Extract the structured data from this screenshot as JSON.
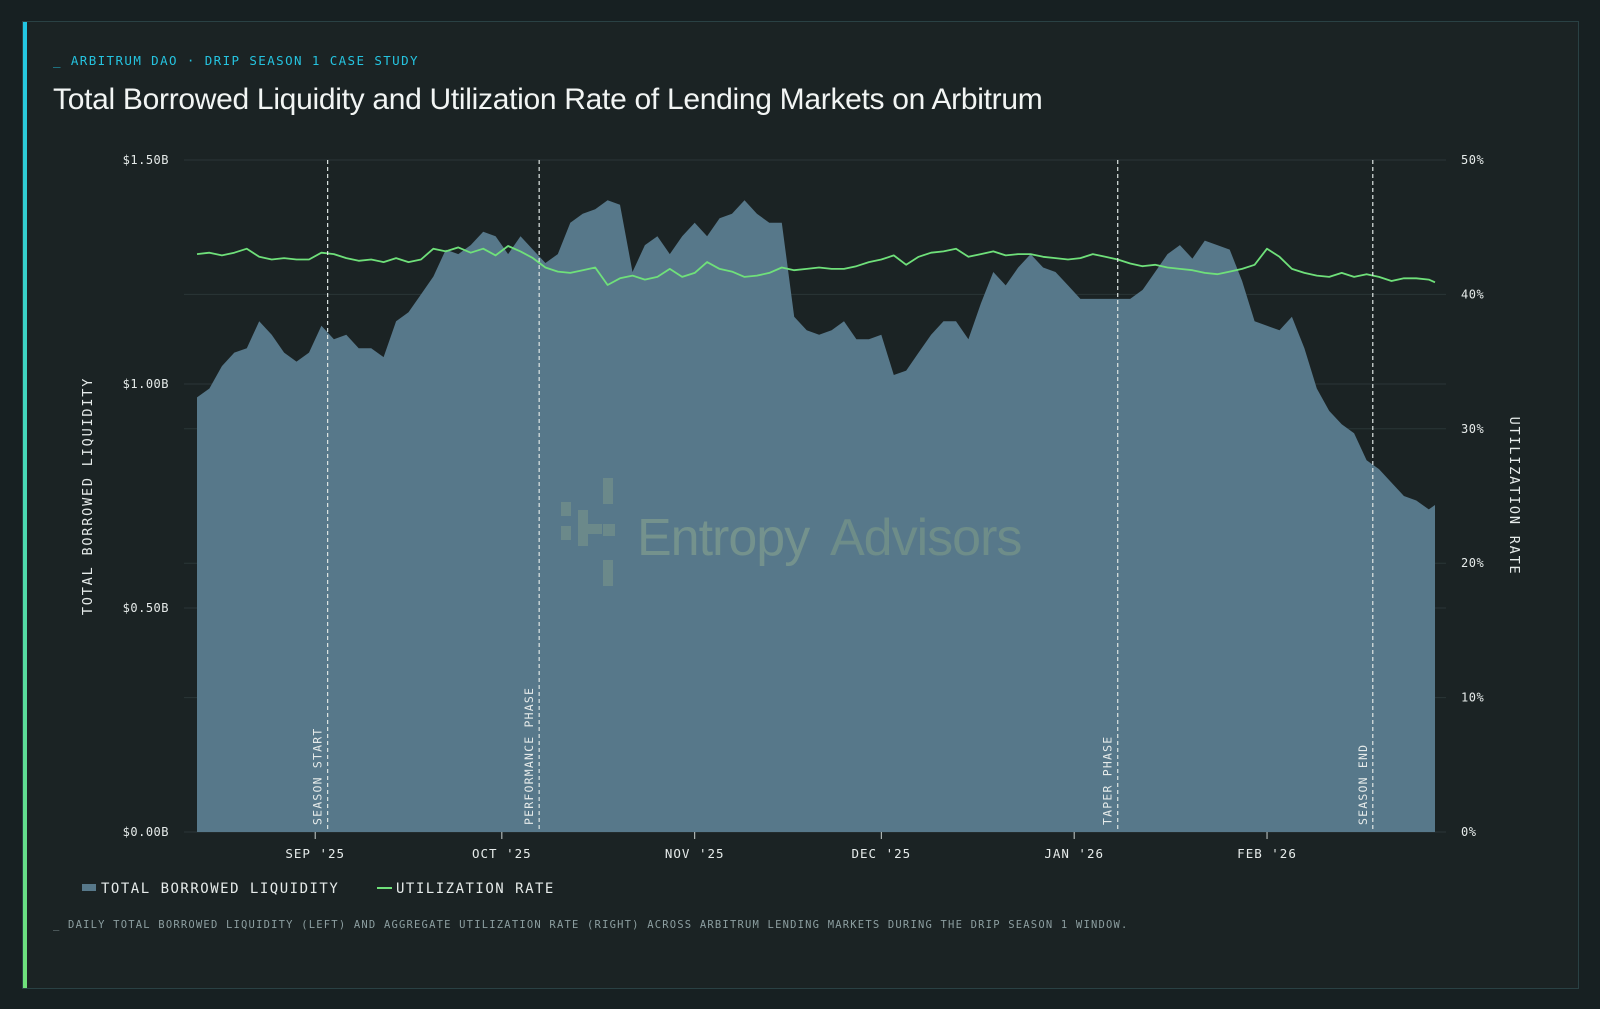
{
  "header": {
    "kicker": "_ ARBITRUM DAO · DRIP SEASON 1 CASE STUDY",
    "title": "Total Borrowed Liquidity and Utilization Rate of Lending Markets on Arbitrum"
  },
  "caption": "_ DAILY TOTAL BORROWED LIQUIDITY (LEFT) AND AGGREGATE UTILIZATION RATE (RIGHT) ACROSS ARBITRUM LENDING MARKETS DURING THE DRIP SEASON 1 WINDOW.",
  "watermark": {
    "part1": "Entropy",
    "part2": "Advisors"
  },
  "colors": {
    "background": "#1b2324",
    "area": "#57788a",
    "line": "#6fe07a",
    "kicker": "#25c3df",
    "axis_text": "#e6ebea",
    "grid": "#2b3637"
  },
  "chart_data": {
    "type": "area",
    "secondary_type": "line",
    "x_range": [
      "2025-08-13",
      "2026-02-28"
    ],
    "x_ticks": [
      {
        "date": "2025-09-01",
        "label": "SEP '25"
      },
      {
        "date": "2025-10-01",
        "label": "OCT '25"
      },
      {
        "date": "2025-11-01",
        "label": "NOV '25"
      },
      {
        "date": "2025-12-01",
        "label": "DEC '25"
      },
      {
        "date": "2026-01-01",
        "label": "JAN '26"
      },
      {
        "date": "2026-02-01",
        "label": "FEB '26"
      }
    ],
    "y_left": {
      "label": "TOTAL BORROWED LIQUIDITY",
      "range": [
        0,
        1.5
      ],
      "unit": "$B",
      "ticks": [
        {
          "value": 0,
          "label": "$0.00B"
        },
        {
          "value": 0.5,
          "label": "$0.50B"
        },
        {
          "value": 1.0,
          "label": "$1.00B"
        },
        {
          "value": 1.5,
          "label": "$1.50B"
        }
      ]
    },
    "y_right": {
      "label": "UTILIZATION RATE",
      "range": [
        0,
        50
      ],
      "unit": "%",
      "ticks": [
        {
          "value": 0,
          "label": "0%"
        },
        {
          "value": 10,
          "label": "10%"
        },
        {
          "value": 20,
          "label": "20%"
        },
        {
          "value": 30,
          "label": "30%"
        },
        {
          "value": 40,
          "label": "40%"
        },
        {
          "value": 50,
          "label": "50%"
        }
      ]
    },
    "grid": "horizontal",
    "legend_position": "bottom-left",
    "legend": [
      {
        "label": "TOTAL BORROWED LIQUIDITY",
        "kind": "area"
      },
      {
        "label": "UTILIZATION RATE",
        "kind": "line"
      }
    ],
    "annotations": [
      {
        "date": "2025-09-03",
        "label": "SEASON START"
      },
      {
        "date": "2025-10-07",
        "label": "PERFORMANCE PHASE"
      },
      {
        "date": "2026-01-08",
        "label": "TAPER PHASE"
      },
      {
        "date": "2026-02-18",
        "label": "SEASON END"
      }
    ],
    "series": [
      {
        "name": "TOTAL BORROWED LIQUIDITY",
        "axis": "left",
        "points": [
          [
            "2025-08-13",
            0.97
          ],
          [
            "2025-08-15",
            0.99
          ],
          [
            "2025-08-17",
            1.04
          ],
          [
            "2025-08-19",
            1.07
          ],
          [
            "2025-08-21",
            1.08
          ],
          [
            "2025-08-23",
            1.14
          ],
          [
            "2025-08-25",
            1.11
          ],
          [
            "2025-08-27",
            1.07
          ],
          [
            "2025-08-29",
            1.05
          ],
          [
            "2025-08-31",
            1.07
          ],
          [
            "2025-09-02",
            1.13
          ],
          [
            "2025-09-04",
            1.1
          ],
          [
            "2025-09-06",
            1.11
          ],
          [
            "2025-09-08",
            1.08
          ],
          [
            "2025-09-10",
            1.08
          ],
          [
            "2025-09-12",
            1.06
          ],
          [
            "2025-09-14",
            1.14
          ],
          [
            "2025-09-16",
            1.16
          ],
          [
            "2025-09-18",
            1.2
          ],
          [
            "2025-09-20",
            1.24
          ],
          [
            "2025-09-22",
            1.3
          ],
          [
            "2025-09-24",
            1.29
          ],
          [
            "2025-09-26",
            1.31
          ],
          [
            "2025-09-28",
            1.34
          ],
          [
            "2025-09-30",
            1.33
          ],
          [
            "2025-10-02",
            1.29
          ],
          [
            "2025-10-04",
            1.33
          ],
          [
            "2025-10-06",
            1.3
          ],
          [
            "2025-10-08",
            1.27
          ],
          [
            "2025-10-10",
            1.29
          ],
          [
            "2025-10-12",
            1.36
          ],
          [
            "2025-10-14",
            1.38
          ],
          [
            "2025-10-16",
            1.39
          ],
          [
            "2025-10-18",
            1.41
          ],
          [
            "2025-10-20",
            1.4
          ],
          [
            "2025-10-22",
            1.25
          ],
          [
            "2025-10-24",
            1.31
          ],
          [
            "2025-10-26",
            1.33
          ],
          [
            "2025-10-28",
            1.29
          ],
          [
            "2025-10-30",
            1.33
          ],
          [
            "2025-11-01",
            1.36
          ],
          [
            "2025-11-03",
            1.33
          ],
          [
            "2025-11-05",
            1.37
          ],
          [
            "2025-11-07",
            1.38
          ],
          [
            "2025-11-09",
            1.41
          ],
          [
            "2025-11-11",
            1.38
          ],
          [
            "2025-11-13",
            1.36
          ],
          [
            "2025-11-15",
            1.36
          ],
          [
            "2025-11-17",
            1.15
          ],
          [
            "2025-11-19",
            1.12
          ],
          [
            "2025-11-21",
            1.11
          ],
          [
            "2025-11-23",
            1.12
          ],
          [
            "2025-11-25",
            1.14
          ],
          [
            "2025-11-27",
            1.1
          ],
          [
            "2025-11-29",
            1.1
          ],
          [
            "2025-12-01",
            1.11
          ],
          [
            "2025-12-03",
            1.02
          ],
          [
            "2025-12-05",
            1.03
          ],
          [
            "2025-12-07",
            1.07
          ],
          [
            "2025-12-09",
            1.11
          ],
          [
            "2025-12-11",
            1.14
          ],
          [
            "2025-12-13",
            1.14
          ],
          [
            "2025-12-15",
            1.1
          ],
          [
            "2025-12-17",
            1.18
          ],
          [
            "2025-12-19",
            1.25
          ],
          [
            "2025-12-21",
            1.22
          ],
          [
            "2025-12-23",
            1.26
          ],
          [
            "2025-12-25",
            1.29
          ],
          [
            "2025-12-27",
            1.26
          ],
          [
            "2025-12-29",
            1.25
          ],
          [
            "2025-12-31",
            1.22
          ],
          [
            "2026-01-02",
            1.19
          ],
          [
            "2026-01-04",
            1.19
          ],
          [
            "2026-01-06",
            1.19
          ],
          [
            "2026-01-08",
            1.19
          ],
          [
            "2026-01-10",
            1.19
          ],
          [
            "2026-01-12",
            1.21
          ],
          [
            "2026-01-14",
            1.25
          ],
          [
            "2026-01-16",
            1.29
          ],
          [
            "2026-01-18",
            1.31
          ],
          [
            "2026-01-20",
            1.28
          ],
          [
            "2026-01-22",
            1.32
          ],
          [
            "2026-01-24",
            1.31
          ],
          [
            "2026-01-26",
            1.3
          ],
          [
            "2026-01-28",
            1.23
          ],
          [
            "2026-01-30",
            1.14
          ],
          [
            "2026-02-01",
            1.13
          ],
          [
            "2026-02-03",
            1.12
          ],
          [
            "2026-02-05",
            1.15
          ],
          [
            "2026-02-07",
            1.08
          ],
          [
            "2026-02-09",
            0.99
          ],
          [
            "2026-02-11",
            0.94
          ],
          [
            "2026-02-13",
            0.91
          ],
          [
            "2026-02-15",
            0.89
          ],
          [
            "2026-02-17",
            0.83
          ],
          [
            "2026-02-19",
            0.81
          ],
          [
            "2026-02-21",
            0.78
          ],
          [
            "2026-02-23",
            0.75
          ],
          [
            "2026-02-25",
            0.74
          ],
          [
            "2026-02-27",
            0.72
          ],
          [
            "2026-02-28",
            0.73
          ]
        ]
      },
      {
        "name": "UTILIZATION RATE",
        "axis": "right",
        "points": [
          [
            "2025-08-13",
            43.0
          ],
          [
            "2025-08-15",
            43.1
          ],
          [
            "2025-08-17",
            42.9
          ],
          [
            "2025-08-19",
            43.1
          ],
          [
            "2025-08-21",
            43.4
          ],
          [
            "2025-08-23",
            42.8
          ],
          [
            "2025-08-25",
            42.6
          ],
          [
            "2025-08-27",
            42.7
          ],
          [
            "2025-08-29",
            42.6
          ],
          [
            "2025-08-31",
            42.6
          ],
          [
            "2025-09-02",
            43.1
          ],
          [
            "2025-09-04",
            43.0
          ],
          [
            "2025-09-06",
            42.7
          ],
          [
            "2025-09-08",
            42.5
          ],
          [
            "2025-09-10",
            42.6
          ],
          [
            "2025-09-12",
            42.4
          ],
          [
            "2025-09-14",
            42.7
          ],
          [
            "2025-09-16",
            42.4
          ],
          [
            "2025-09-18",
            42.6
          ],
          [
            "2025-09-20",
            43.4
          ],
          [
            "2025-09-22",
            43.2
          ],
          [
            "2025-09-24",
            43.5
          ],
          [
            "2025-09-26",
            43.1
          ],
          [
            "2025-09-28",
            43.4
          ],
          [
            "2025-09-30",
            42.9
          ],
          [
            "2025-10-02",
            43.6
          ],
          [
            "2025-10-04",
            43.2
          ],
          [
            "2025-10-06",
            42.7
          ],
          [
            "2025-10-08",
            42.0
          ],
          [
            "2025-10-10",
            41.7
          ],
          [
            "2025-10-12",
            41.6
          ],
          [
            "2025-10-14",
            41.8
          ],
          [
            "2025-10-16",
            42.0
          ],
          [
            "2025-10-18",
            40.7
          ],
          [
            "2025-10-20",
            41.2
          ],
          [
            "2025-10-22",
            41.4
          ],
          [
            "2025-10-24",
            41.1
          ],
          [
            "2025-10-26",
            41.3
          ],
          [
            "2025-10-28",
            41.9
          ],
          [
            "2025-10-30",
            41.3
          ],
          [
            "2025-11-01",
            41.6
          ],
          [
            "2025-11-03",
            42.4
          ],
          [
            "2025-11-05",
            41.9
          ],
          [
            "2025-11-07",
            41.7
          ],
          [
            "2025-11-09",
            41.3
          ],
          [
            "2025-11-11",
            41.4
          ],
          [
            "2025-11-13",
            41.6
          ],
          [
            "2025-11-15",
            42.0
          ],
          [
            "2025-11-17",
            41.8
          ],
          [
            "2025-11-19",
            41.9
          ],
          [
            "2025-11-21",
            42.0
          ],
          [
            "2025-11-23",
            41.9
          ],
          [
            "2025-11-25",
            41.9
          ],
          [
            "2025-11-27",
            42.1
          ],
          [
            "2025-11-29",
            42.4
          ],
          [
            "2025-12-01",
            42.6
          ],
          [
            "2025-12-03",
            42.9
          ],
          [
            "2025-12-05",
            42.2
          ],
          [
            "2025-12-07",
            42.8
          ],
          [
            "2025-12-09",
            43.1
          ],
          [
            "2025-12-11",
            43.2
          ],
          [
            "2025-12-13",
            43.4
          ],
          [
            "2025-12-15",
            42.8
          ],
          [
            "2025-12-17",
            43.0
          ],
          [
            "2025-12-19",
            43.2
          ],
          [
            "2025-12-21",
            42.9
          ],
          [
            "2025-12-23",
            43.0
          ],
          [
            "2025-12-25",
            43.0
          ],
          [
            "2025-12-27",
            42.8
          ],
          [
            "2025-12-29",
            42.7
          ],
          [
            "2025-12-31",
            42.6
          ],
          [
            "2026-01-02",
            42.7
          ],
          [
            "2026-01-04",
            43.0
          ],
          [
            "2026-01-06",
            42.8
          ],
          [
            "2026-01-08",
            42.6
          ],
          [
            "2026-01-10",
            42.3
          ],
          [
            "2026-01-12",
            42.1
          ],
          [
            "2026-01-14",
            42.2
          ],
          [
            "2026-01-16",
            42.0
          ],
          [
            "2026-01-18",
            41.9
          ],
          [
            "2026-01-20",
            41.8
          ],
          [
            "2026-01-22",
            41.6
          ],
          [
            "2026-01-24",
            41.5
          ],
          [
            "2026-01-26",
            41.7
          ],
          [
            "2026-01-28",
            41.9
          ],
          [
            "2026-01-30",
            42.2
          ],
          [
            "2026-02-01",
            43.4
          ],
          [
            "2026-02-03",
            42.8
          ],
          [
            "2026-02-05",
            41.9
          ],
          [
            "2026-02-07",
            41.6
          ],
          [
            "2026-02-09",
            41.4
          ],
          [
            "2026-02-11",
            41.3
          ],
          [
            "2026-02-13",
            41.6
          ],
          [
            "2026-02-15",
            41.3
          ],
          [
            "2026-02-17",
            41.5
          ],
          [
            "2026-02-19",
            41.3
          ],
          [
            "2026-02-21",
            41.0
          ],
          [
            "2026-02-23",
            41.2
          ],
          [
            "2026-02-25",
            41.2
          ],
          [
            "2026-02-27",
            41.1
          ],
          [
            "2026-02-28",
            40.9
          ]
        ]
      }
    ]
  }
}
